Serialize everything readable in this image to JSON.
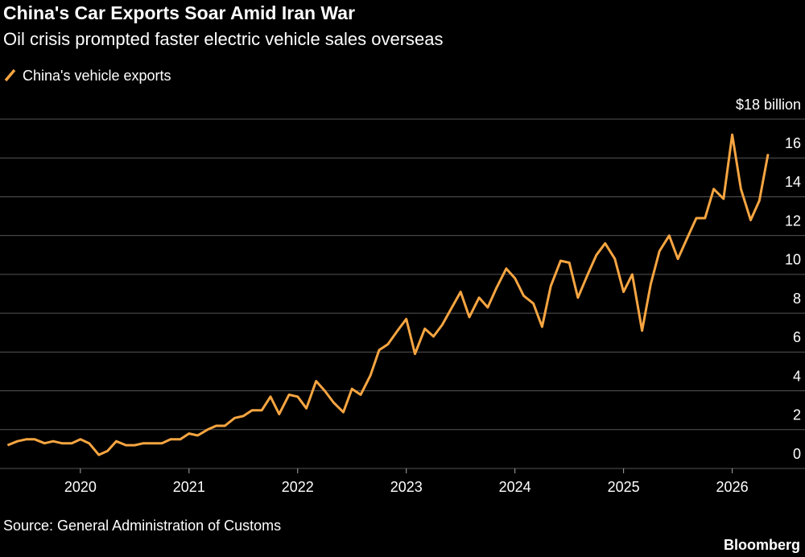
{
  "chart_data": {
    "type": "line",
    "title": "China's Car Exports Soar Amid Iran War",
    "subtitle": "Oil crisis prompted faster electric vehicle sales overseas",
    "source": "Source: General Administration of Customs",
    "brand": "Bloomberg",
    "x": [
      2019.33,
      2019.42,
      2019.5,
      2019.58,
      2019.67,
      2019.75,
      2019.83,
      2019.92,
      2020,
      2020.08,
      2020.17,
      2020.25,
      2020.33,
      2020.42,
      2020.5,
      2020.58,
      2020.67,
      2020.75,
      2020.83,
      2020.92,
      2021,
      2021.08,
      2021.17,
      2021.25,
      2021.33,
      2021.42,
      2021.5,
      2021.58,
      2021.67,
      2021.75,
      2021.83,
      2021.92,
      2022,
      2022.08,
      2022.17,
      2022.25,
      2022.33,
      2022.42,
      2022.5,
      2022.58,
      2022.67,
      2022.75,
      2022.83,
      2022.92,
      2023,
      2023.08,
      2023.17,
      2023.25,
      2023.33,
      2023.42,
      2023.5,
      2023.58,
      2023.67,
      2023.75,
      2023.83,
      2023.92,
      2024,
      2024.08,
      2024.17,
      2024.25,
      2024.33,
      2024.42,
      2024.5,
      2024.58,
      2024.67,
      2024.75,
      2024.83,
      2024.92,
      2025,
      2025.08,
      2025.17,
      2025.25,
      2025.33,
      2025.42,
      2025.5,
      2025.58,
      2025.67,
      2025.75,
      2025.83,
      2025.92,
      2026,
      2026.08,
      2026.17,
      2026.25,
      2026.33
    ],
    "series": [
      {
        "name": "China's vehicle exports",
        "color": "#f7a541",
        "values": [
          1.2,
          1.4,
          1.5,
          1.5,
          1.3,
          1.4,
          1.3,
          1.3,
          1.5,
          1.3,
          0.7,
          0.9,
          1.4,
          1.2,
          1.2,
          1.3,
          1.3,
          1.3,
          1.5,
          1.5,
          1.8,
          1.7,
          2.0,
          2.2,
          2.2,
          2.6,
          2.7,
          3.0,
          3.0,
          3.7,
          2.8,
          3.8,
          3.7,
          3.1,
          4.5,
          4.0,
          3.4,
          2.9,
          4.1,
          3.8,
          4.8,
          6.1,
          6.4,
          7.1,
          7.7,
          5.9,
          7.2,
          6.8,
          7.4,
          8.3,
          9.1,
          7.8,
          8.8,
          8.3,
          9.3,
          10.3,
          9.8,
          8.9,
          8.5,
          7.3,
          9.4,
          10.7,
          10.6,
          8.8,
          10.0,
          11.0,
          11.6,
          10.8,
          9.1,
          10.0,
          7.1,
          9.5,
          11.2,
          12.0,
          10.8,
          11.8,
          12.9,
          12.9,
          14.4,
          13.9,
          17.2,
          14.4,
          12.8,
          13.8,
          16.2
        ]
      }
    ],
    "xlim": [
      2019.26,
      2026.67
    ],
    "xticks": [
      2020,
      2021,
      2022,
      2023,
      2024,
      2025,
      2026
    ],
    "ylim": [
      0,
      18
    ],
    "yticks": [
      0,
      2,
      4,
      6,
      8,
      10,
      12,
      14,
      16,
      {
        "value": 18,
        "label": "$18 billion"
      }
    ],
    "grid": true
  }
}
